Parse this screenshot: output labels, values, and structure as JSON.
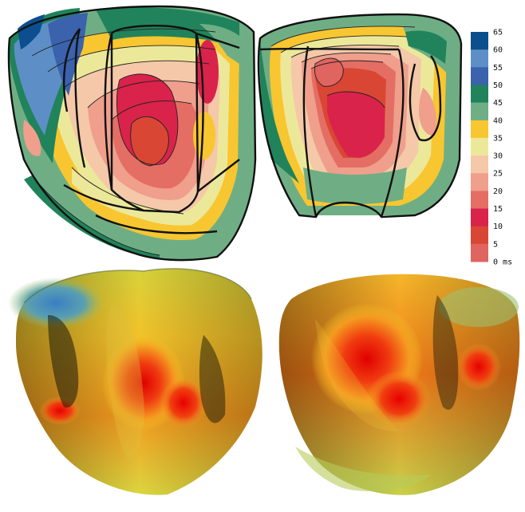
{
  "legend": {
    "unit": "ms",
    "ticks": [
      "65",
      "60",
      "55",
      "50",
      "45",
      "40",
      "35",
      "30",
      "25",
      "20",
      "15",
      "10",
      "5",
      "0"
    ],
    "colors": [
      "#0d4f8e",
      "#5d8fc6",
      "#3a62ad",
      "#20835b",
      "#6fae84",
      "#f8c630",
      "#ece89a",
      "#f4c8a8",
      "#ef9f8c",
      "#e46e64",
      "#d9234b",
      "#d94734",
      "#e0645f"
    ]
  },
  "diagram": {
    "panels": [
      {
        "name": "schematic-anterior-view",
        "style": "contour-map"
      },
      {
        "name": "schematic-posterior-view",
        "style": "contour-map"
      },
      {
        "name": "rendered-anterior-view",
        "style": "shaded-surface"
      },
      {
        "name": "rendered-posterior-view",
        "style": "shaded-surface"
      }
    ]
  }
}
